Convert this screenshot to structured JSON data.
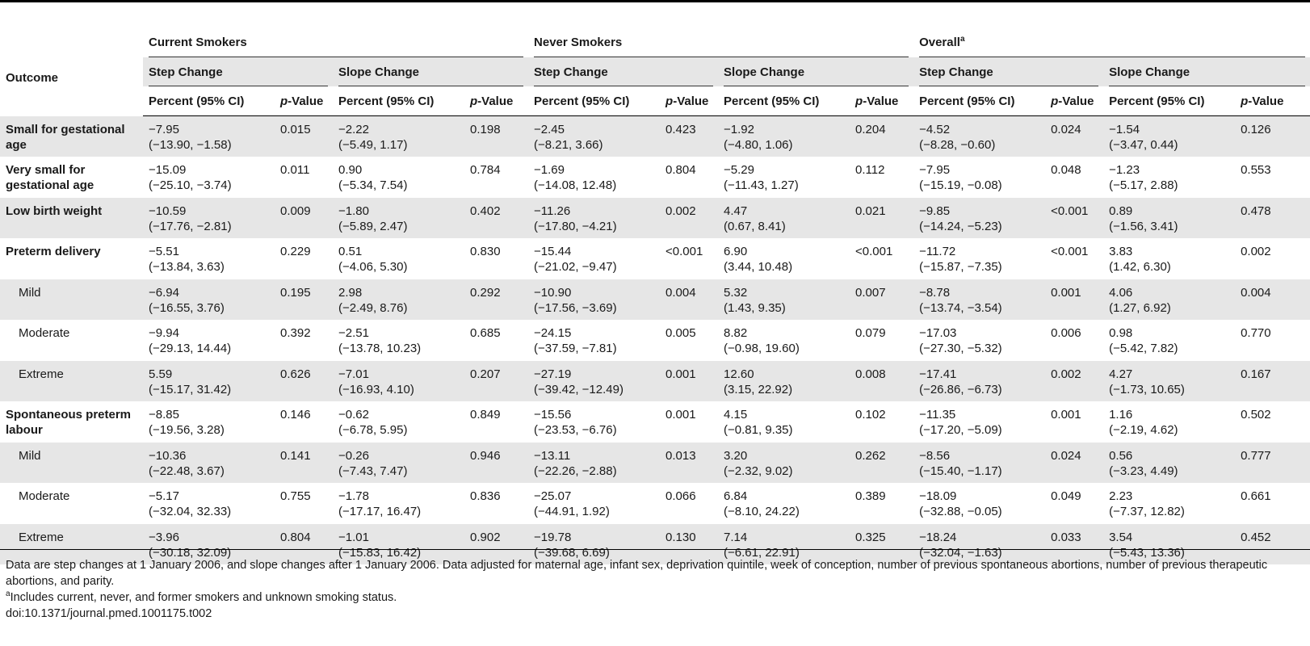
{
  "headers": {
    "outcome": "Outcome",
    "groups": [
      {
        "label": "Current Smokers",
        "sup": ""
      },
      {
        "label": "Never Smokers",
        "sup": ""
      },
      {
        "label": "Overall",
        "sup": "a"
      }
    ],
    "step_change": "Step Change",
    "slope_change": "Slope Change",
    "percent_ci": "Percent (95% CI)",
    "p_italic": "p",
    "p_value_suffix": "-Value"
  },
  "rows": [
    {
      "label": "Small for gestational age",
      "sub": false,
      "cells": [
        [
          "−7.95",
          "(−13.90, −1.58)"
        ],
        [
          "0.015",
          ""
        ],
        [
          "−2.22",
          "(−5.49, 1.17)"
        ],
        [
          "0.198",
          ""
        ],
        [
          "−2.45",
          "(−8.21, 3.66)"
        ],
        [
          "0.423",
          ""
        ],
        [
          "−1.92",
          "(−4.80, 1.06)"
        ],
        [
          "0.204",
          ""
        ],
        [
          "−4.52",
          "(−8.28, −0.60)"
        ],
        [
          "0.024",
          ""
        ],
        [
          "−1.54",
          "(−3.47, 0.44)"
        ],
        [
          "0.126",
          ""
        ]
      ]
    },
    {
      "label": "Very small for gestational age",
      "sub": false,
      "cells": [
        [
          "−15.09",
          "(−25.10, −3.74)"
        ],
        [
          "0.011",
          ""
        ],
        [
          "0.90",
          "(−5.34, 7.54)"
        ],
        [
          "0.784",
          ""
        ],
        [
          "−1.69",
          "(−14.08, 12.48)"
        ],
        [
          "0.804",
          ""
        ],
        [
          "−5.29",
          "(−11.43, 1.27)"
        ],
        [
          "0.112",
          ""
        ],
        [
          "−7.95",
          "(−15.19, −0.08)"
        ],
        [
          "0.048",
          ""
        ],
        [
          "−1.23",
          "(−5.17, 2.88)"
        ],
        [
          "0.553",
          ""
        ]
      ]
    },
    {
      "label": "Low birth weight",
      "sub": false,
      "cells": [
        [
          "−10.59",
          "(−17.76, −2.81)"
        ],
        [
          "0.009",
          ""
        ],
        [
          "−1.80",
          "(−5.89, 2.47)"
        ],
        [
          "0.402",
          ""
        ],
        [
          "−11.26",
          "(−17.80, −4.21)"
        ],
        [
          "0.002",
          ""
        ],
        [
          "4.47",
          "(0.67, 8.41)"
        ],
        [
          "0.021",
          ""
        ],
        [
          "−9.85",
          "(−14.24, −5.23)"
        ],
        [
          "<0.001",
          ""
        ],
        [
          "0.89",
          "(−1.56, 3.41)"
        ],
        [
          "0.478",
          ""
        ]
      ]
    },
    {
      "label": "Preterm delivery",
      "sub": false,
      "cells": [
        [
          "−5.51",
          "(−13.84, 3.63)"
        ],
        [
          "0.229",
          ""
        ],
        [
          "0.51",
          "(−4.06, 5.30)"
        ],
        [
          "0.830",
          ""
        ],
        [
          "−15.44",
          "(−21.02, −9.47)"
        ],
        [
          "<0.001",
          ""
        ],
        [
          "6.90",
          "(3.44, 10.48)"
        ],
        [
          "<0.001",
          ""
        ],
        [
          "−11.72",
          "(−15.87, −7.35)"
        ],
        [
          "<0.001",
          ""
        ],
        [
          "3.83",
          "(1.42, 6.30)"
        ],
        [
          "0.002",
          ""
        ]
      ]
    },
    {
      "label": "Mild",
      "sub": true,
      "cells": [
        [
          "−6.94",
          "(−16.55, 3.76)"
        ],
        [
          "0.195",
          ""
        ],
        [
          "2.98",
          "(−2.49, 8.76)"
        ],
        [
          "0.292",
          ""
        ],
        [
          "−10.90",
          "(−17.56, −3.69)"
        ],
        [
          "0.004",
          ""
        ],
        [
          "5.32",
          "(1.43, 9.35)"
        ],
        [
          "0.007",
          ""
        ],
        [
          "−8.78",
          "(−13.74, −3.54)"
        ],
        [
          "0.001",
          ""
        ],
        [
          "4.06",
          "(1.27, 6.92)"
        ],
        [
          "0.004",
          ""
        ]
      ]
    },
    {
      "label": "Moderate",
      "sub": true,
      "cells": [
        [
          "−9.94",
          "(−29.13, 14.44)"
        ],
        [
          "0.392",
          ""
        ],
        [
          "−2.51",
          "(−13.78, 10.23)"
        ],
        [
          "0.685",
          ""
        ],
        [
          "−24.15",
          "(−37.59, −7.81)"
        ],
        [
          "0.005",
          ""
        ],
        [
          "8.82",
          "(−0.98, 19.60)"
        ],
        [
          "0.079",
          ""
        ],
        [
          "−17.03",
          "(−27.30, −5.32)"
        ],
        [
          "0.006",
          ""
        ],
        [
          "0.98",
          "(−5.42, 7.82)"
        ],
        [
          "0.770",
          ""
        ]
      ]
    },
    {
      "label": "Extreme",
      "sub": true,
      "cells": [
        [
          "5.59",
          "(−15.17, 31.42)"
        ],
        [
          "0.626",
          ""
        ],
        [
          "−7.01",
          "(−16.93, 4.10)"
        ],
        [
          "0.207",
          ""
        ],
        [
          "−27.19",
          "(−39.42, −12.49)"
        ],
        [
          "0.001",
          ""
        ],
        [
          "12.60",
          "(3.15, 22.92)"
        ],
        [
          "0.008",
          ""
        ],
        [
          "−17.41",
          "(−26.86, −6.73)"
        ],
        [
          "0.002",
          ""
        ],
        [
          "4.27",
          "(−1.73, 10.65)"
        ],
        [
          "0.167",
          ""
        ]
      ]
    },
    {
      "label": "Spontaneous preterm labour",
      "sub": false,
      "cells": [
        [
          "−8.85",
          "(−19.56, 3.28)"
        ],
        [
          "0.146",
          ""
        ],
        [
          "−0.62",
          "(−6.78, 5.95)"
        ],
        [
          "0.849",
          ""
        ],
        [
          "−15.56",
          "(−23.53, −6.76)"
        ],
        [
          "0.001",
          ""
        ],
        [
          "4.15",
          "(−0.81, 9.35)"
        ],
        [
          "0.102",
          ""
        ],
        [
          "−11.35",
          "(−17.20, −5.09)"
        ],
        [
          "0.001",
          ""
        ],
        [
          "1.16",
          "(−2.19, 4.62)"
        ],
        [
          "0.502",
          ""
        ]
      ]
    },
    {
      "label": "Mild",
      "sub": true,
      "cells": [
        [
          "−10.36",
          "(−22.48, 3.67)"
        ],
        [
          "0.141",
          ""
        ],
        [
          "−0.26",
          "(−7.43, 7.47)"
        ],
        [
          "0.946",
          ""
        ],
        [
          "−13.11",
          "(−22.26, −2.88)"
        ],
        [
          "0.013",
          ""
        ],
        [
          "3.20",
          "(−2.32, 9.02)"
        ],
        [
          "0.262",
          ""
        ],
        [
          "−8.56",
          "(−15.40, −1.17)"
        ],
        [
          "0.024",
          ""
        ],
        [
          "0.56",
          "(−3.23, 4.49)"
        ],
        [
          "0.777",
          ""
        ]
      ]
    },
    {
      "label": "Moderate",
      "sub": true,
      "cells": [
        [
          "−5.17",
          "(−32.04, 32.33)"
        ],
        [
          "0.755",
          ""
        ],
        [
          "−1.78",
          "(−17.17, 16.47)"
        ],
        [
          "0.836",
          ""
        ],
        [
          "−25.07",
          "(−44.91, 1.92)"
        ],
        [
          "0.066",
          ""
        ],
        [
          "6.84",
          "(−8.10, 24.22)"
        ],
        [
          "0.389",
          ""
        ],
        [
          "−18.09",
          "(−32.88, −0.05)"
        ],
        [
          "0.049",
          ""
        ],
        [
          "2.23",
          "(−7.37, 12.82)"
        ],
        [
          "0.661",
          ""
        ]
      ]
    },
    {
      "label": "Extreme",
      "sub": true,
      "cells": [
        [
          "−3.96",
          "(−30.18, 32.09)"
        ],
        [
          "0.804",
          ""
        ],
        [
          "−1.01",
          "(−15.83, 16.42)"
        ],
        [
          "0.902",
          ""
        ],
        [
          "−19.78",
          "(−39.68, 6.69)"
        ],
        [
          "0.130",
          ""
        ],
        [
          "7.14",
          "(−6.61, 22.91)"
        ],
        [
          "0.325",
          ""
        ],
        [
          "−18.24",
          "(−32.04, −1.63)"
        ],
        [
          "0.033",
          ""
        ],
        [
          "3.54",
          "(−5.43, 13.36)"
        ],
        [
          "0.452",
          ""
        ]
      ]
    }
  ],
  "footnotes": {
    "main": "Data are step changes at 1 January 2006, and slope changes after 1 January 2006. Data adjusted for maternal age, infant sex, deprivation quintile, week of conception, number of previous spontaneous abortions, number of previous therapeutic abortions, and parity.",
    "a_marker": "a",
    "a_text": "Includes current, never, and former smokers and unknown smoking status.",
    "doi": "doi:10.1371/journal.pmed.1001175.t002"
  }
}
